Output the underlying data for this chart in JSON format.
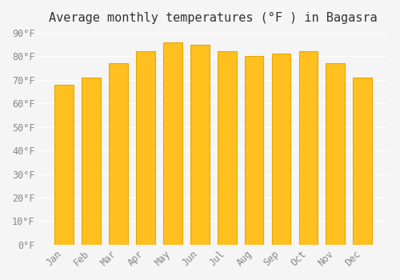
{
  "title": "Average monthly temperatures (°F ) in Bagasra",
  "months": [
    "Jan",
    "Feb",
    "Mar",
    "Apr",
    "May",
    "Jun",
    "Jul",
    "Aug",
    "Sep",
    "Oct",
    "Nov",
    "Dec"
  ],
  "values": [
    68,
    71,
    77,
    82,
    86,
    85,
    82,
    80,
    81,
    82,
    77,
    71
  ],
  "bar_color_face": "#FFC020",
  "bar_color_edge": "#E8A800",
  "ylim": [
    0,
    90
  ],
  "yticks": [
    0,
    10,
    20,
    30,
    40,
    50,
    60,
    70,
    80,
    90
  ],
  "ytick_labels": [
    "0°F",
    "10°F",
    "20°F",
    "30°F",
    "40°F",
    "50°F",
    "60°F",
    "70°F",
    "80°F",
    "90°F"
  ],
  "background_color": "#F5F5F5",
  "grid_color": "#FFFFFF",
  "title_fontsize": 11,
  "tick_fontsize": 8.5,
  "bar_width": 0.7
}
